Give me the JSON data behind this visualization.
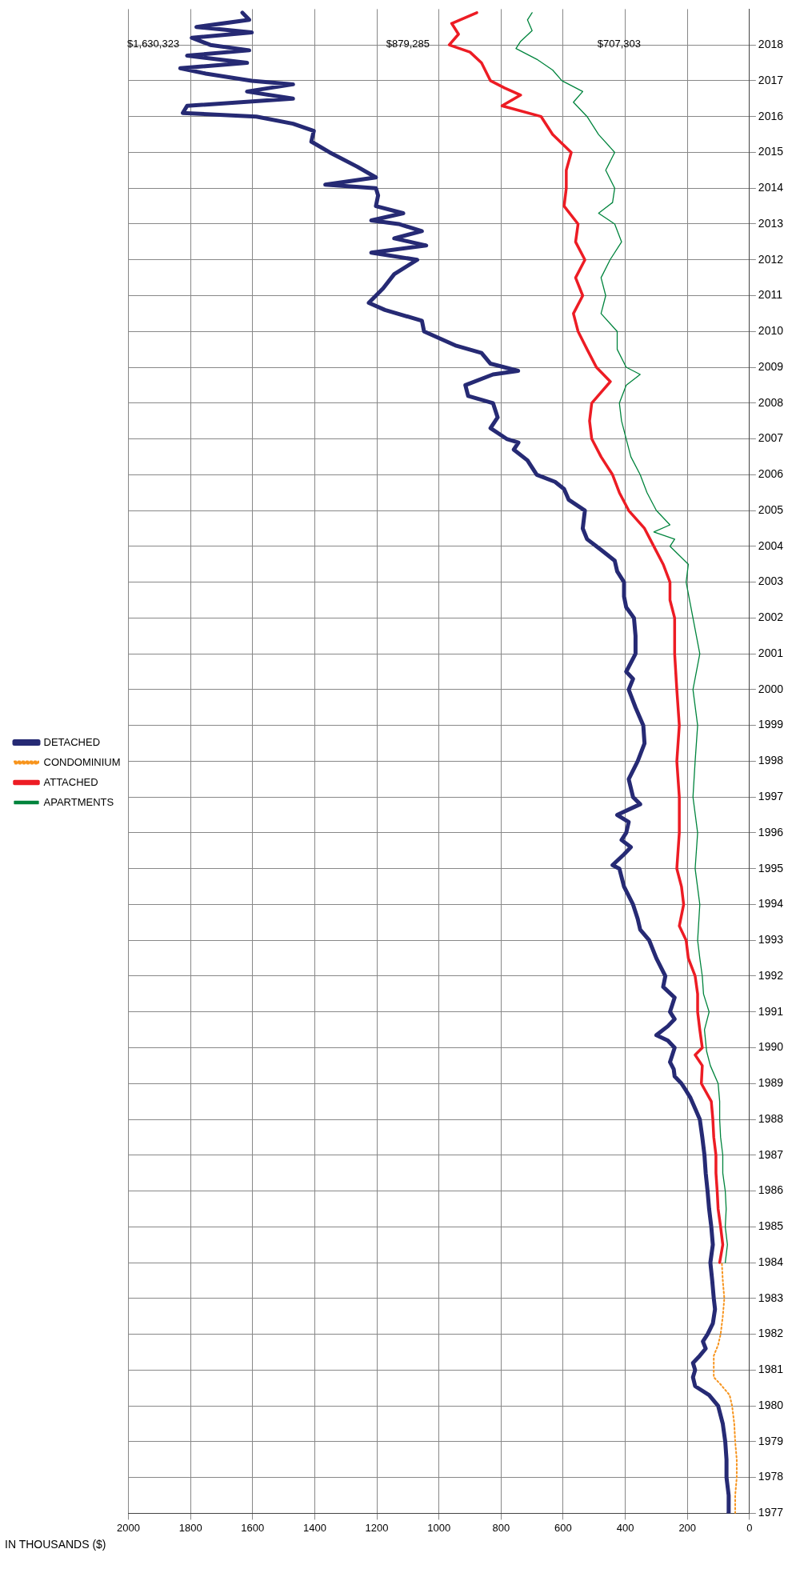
{
  "chart_data": {
    "type": "line",
    "xlabel": "IN THOUSANDS ($)",
    "xlim": [
      2000,
      0
    ],
    "xticks": [
      0,
      200,
      400,
      600,
      800,
      1000,
      1200,
      1400,
      1600,
      1800,
      2000
    ],
    "ylim": [
      1977,
      2019
    ],
    "yticks": [
      1977,
      1978,
      1979,
      1980,
      1981,
      1982,
      1983,
      1984,
      1985,
      1986,
      1987,
      1988,
      1989,
      1990,
      1991,
      1992,
      1993,
      1994,
      1995,
      1996,
      1997,
      1998,
      1999,
      2000,
      2001,
      2002,
      2003,
      2004,
      2005,
      2006,
      2007,
      2008,
      2009,
      2010,
      2011,
      2012,
      2013,
      2014,
      2015,
      2016,
      2017,
      2018
    ],
    "grid": true,
    "legend": "left",
    "marker": "none",
    "annotations": [
      "$1,630,323",
      "$879,285",
      "$707,303"
    ],
    "series": [
      {
        "name": "DETACHED",
        "color": "#262a74",
        "line_style": "solid",
        "values": [
          1977,
          1977.5,
          1978,
          1978.5,
          1979,
          1979.5,
          1980,
          1980.3,
          1980.55,
          1980.8,
          1981,
          1981.2,
          1981.4,
          1981.6,
          1981.8,
          1982,
          1982.3,
          1982.7,
          1983,
          1983.5,
          1984,
          1984.5,
          1985,
          1985.5,
          1986,
          1986.5,
          1987,
          1987.5,
          1988,
          1988.3,
          1988.6,
          1988.8,
          1989,
          1989.2,
          1989.4,
          1989.6,
          1990,
          1990.2,
          1990.35,
          1990.6,
          1990.8,
          1991,
          1991.4,
          1991.7,
          1992,
          1992.5,
          1993,
          1993.3,
          1993.6,
          1994,
          1994.5,
          1995,
          1995.1,
          1995.4,
          1995.6,
          1995.8,
          1996,
          1996.3,
          1996.5,
          1996.8,
          1997,
          1997.5,
          1998,
          1998.5,
          1999,
          1999.5,
          2000,
          2000.3,
          2000.5,
          2001,
          2001.5,
          2002,
          2002.3,
          2002.6,
          2003,
          2003.3,
          2003.6,
          2003.9,
          2004,
          2004.2,
          2004.5,
          2005,
          2005.3,
          2005.6,
          2005.8,
          2006,
          2006.4,
          2006.7,
          2006.9,
          2007,
          2007.3,
          2007.6,
          2008,
          2008.2,
          2008.5,
          2008.8,
          2008.9,
          2009.1,
          2009.4,
          2009.6,
          2009.8,
          2010,
          2010.3,
          2010.6,
          2010.8,
          2011.2,
          2011.6,
          2012,
          2012.2,
          2012.4,
          2012.6,
          2012.8,
          2013,
          2013.1,
          2013.3,
          2013.5,
          2013.8,
          2014,
          2014.1,
          2014.3,
          2014.6,
          2015,
          2015.3,
          2015.6,
          2015.8,
          2016,
          2016.1,
          2016.3,
          2016.5,
          2016.7,
          2016.9,
          2017,
          2017.2,
          2017.35,
          2017.5,
          2017.7,
          2017.85,
          2018,
          2018.2,
          2018.35,
          2018.5,
          2018.7,
          2018.9
        ],
        "x": [
          68,
          67,
          74,
          74,
          78,
          86,
          101,
          130,
          175,
          182,
          175,
          182,
          160,
          141,
          150,
          135,
          118,
          111,
          115,
          120,
          126,
          118,
          123,
          130,
          135,
          141,
          145,
          152,
          160,
          175,
          190,
          204,
          219,
          241,
          244,
          256,
          241,
          263,
          300,
          263,
          241,
          256,
          241,
          278,
          271,
          300,
          323,
          352,
          360,
          375,
          404,
          419,
          441,
          404,
          382,
          412,
          397,
          389,
          426,
          352,
          375,
          389,
          360,
          338,
          342,
          367,
          389,
          375,
          397,
          367,
          367,
          372,
          397,
          404,
          404,
          426,
          434,
          478,
          493,
          523,
          537,
          530,
          582,
          597,
          626,
          685,
          715,
          759,
          744,
          782,
          834,
          811,
          826,
          906,
          915,
          826,
          745,
          834,
          863,
          944,
          996,
          1048,
          1055,
          1174,
          1226,
          1180,
          1144,
          1070,
          1218,
          1041,
          1144,
          1055,
          1130,
          1218,
          1115,
          1203,
          1196,
          1203,
          1366,
          1203,
          1263,
          1352,
          1411,
          1403,
          1470,
          1588,
          1825,
          1811,
          1470,
          1618,
          1470,
          1603,
          1751,
          1833,
          1618,
          1811,
          1611,
          1736,
          1796,
          1603,
          1781,
          1611,
          1633
        ]
      },
      {
        "name": "CONDOMINIUM",
        "color": "#f7941d",
        "line_style": "dotted",
        "values": [
          1977,
          1977.5,
          1978,
          1978.5,
          1979,
          1979.5,
          1980,
          1980.3,
          1980.6,
          1980.8,
          1981,
          1981.4,
          1981.7,
          1982,
          1982.5,
          1983,
          1983.5,
          1984
        ],
        "x": [
          46,
          46,
          41,
          41,
          46,
          49,
          56,
          64,
          93,
          115,
          115,
          115,
          101,
          93,
          86,
          81,
          86,
          89
        ]
      },
      {
        "name": "ATTACHED",
        "color": "#ed1c24",
        "line_style": "solid",
        "values": [
          1984,
          1984.5,
          1985,
          1985.5,
          1986,
          1986.5,
          1987,
          1987.5,
          1988,
          1988.5,
          1989,
          1989.5,
          1989.8,
          1990,
          1990.5,
          1991,
          1991.5,
          1992,
          1992.5,
          1993,
          1993.4,
          1994,
          1994.5,
          1995,
          1996,
          1997,
          1998,
          1999,
          2000,
          2001,
          2002,
          2002.5,
          2003,
          2003.5,
          2004,
          2004.5,
          2005,
          2005.5,
          2006,
          2006.5,
          2007,
          2007.5,
          2008,
          2008.3,
          2008.6,
          2009,
          2009.5,
          2010,
          2010.5,
          2011,
          2011.5,
          2012,
          2012.5,
          2013,
          2013.5,
          2014,
          2014.5,
          2015,
          2015.5,
          2016,
          2016.3,
          2016.6,
          2016.8,
          2017,
          2017.5,
          2017.8,
          2018,
          2018.3,
          2018.6,
          2018.9
        ],
        "x": [
          96,
          86,
          93,
          101,
          104,
          108,
          108,
          115,
          118,
          123,
          155,
          152,
          175,
          152,
          160,
          167,
          167,
          175,
          197,
          204,
          226,
          212,
          219,
          234,
          226,
          226,
          234,
          226,
          234,
          241,
          241,
          256,
          256,
          278,
          308,
          338,
          389,
          419,
          441,
          478,
          508,
          515,
          508,
          478,
          448,
          493,
          523,
          552,
          567,
          537,
          560,
          530,
          560,
          552,
          597,
          590,
          590,
          574,
          634,
          671,
          797,
          737,
          789,
          834,
          863,
          900,
          967,
          937,
          959,
          878
        ]
      },
      {
        "name": "APARTMENTS",
        "color": "#00843d",
        "line_style": "solid",
        "values": [
          1984,
          1984.5,
          1985,
          1985.5,
          1986,
          1986.5,
          1987,
          1987.5,
          1988,
          1988.5,
          1989,
          1989.5,
          1989.9,
          1990.5,
          1991,
          1991.5,
          1992,
          1992.5,
          1993,
          1994,
          1995,
          1996,
          1997,
          1998,
          1999,
          2000,
          2001,
          2002,
          2003,
          2003.5,
          2004,
          2004.2,
          2004.4,
          2004.6,
          2005,
          2005.5,
          2006,
          2006.5,
          2007,
          2007.5,
          2008,
          2008.5,
          2008.8,
          2009,
          2009.5,
          2010,
          2010.5,
          2011,
          2011.5,
          2012,
          2012.5,
          2013,
          2013.3,
          2013.6,
          2014,
          2014.5,
          2015,
          2015.5,
          2016,
          2016.4,
          2016.7,
          2017,
          2017.3,
          2017.6,
          2017.9,
          2018.1,
          2018.4,
          2018.7,
          2018.9
        ],
        "x": [
          78,
          71,
          78,
          75,
          78,
          86,
          86,
          93,
          96,
          96,
          101,
          126,
          138,
          145,
          130,
          148,
          152,
          160,
          167,
          160,
          175,
          167,
          182,
          175,
          167,
          182,
          160,
          182,
          204,
          197,
          256,
          241,
          308,
          256,
          300,
          330,
          352,
          382,
          397,
          412,
          419,
          397,
          352,
          397,
          426,
          426,
          478,
          463,
          478,
          449,
          412,
          434,
          486,
          441,
          434,
          463,
          434,
          486,
          523,
          567,
          537,
          604,
          634,
          685,
          752,
          737,
          700,
          715,
          700
        ]
      }
    ]
  }
}
